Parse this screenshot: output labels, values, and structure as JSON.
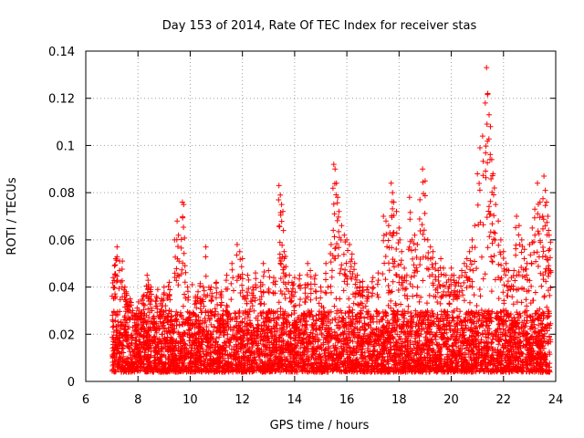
{
  "chart_data": {
    "type": "scatter",
    "title": "Day 153 of 2014, Rate Of TEC Index for receiver stas",
    "xlabel": "GPS time / hours",
    "ylabel": "ROTI / TECUs",
    "xlim": [
      6,
      24
    ],
    "ylim": [
      0,
      0.14
    ],
    "x_ticks": [
      6,
      8,
      10,
      12,
      14,
      16,
      18,
      20,
      22,
      24
    ],
    "x_tick_labels": [
      "6",
      "8",
      "10",
      "12",
      "14",
      "16",
      "18",
      "20",
      "22",
      "24"
    ],
    "y_ticks": [
      0,
      0.02,
      0.04,
      0.06,
      0.08,
      0.1,
      0.12,
      0.14
    ],
    "y_tick_labels": [
      "0",
      "0.02",
      "0.04",
      "0.06",
      "0.08",
      "0.1",
      "0.12",
      "0.14"
    ],
    "grid": true,
    "legend": "none",
    "marker": "plus",
    "colors": {
      "points": "#ff0000",
      "grid": "#a0a0a0",
      "axes": "#000000"
    },
    "series": [
      {
        "name": "ROTI",
        "note": "dense band of ~0.005-0.03 TECU points from 7.0 to 23.8 h is generated as a band; listed points are the upper envelope",
        "band": {
          "x_start": 7.0,
          "x_end": 23.8,
          "y_min": 0.004,
          "y_typical_max": 0.03
        },
        "x": [
          7.05,
          7.1,
          7.15,
          7.2,
          7.3,
          7.4,
          7.5,
          7.55,
          7.6,
          7.7,
          7.8,
          7.9,
          8.2,
          8.35,
          8.4,
          8.5,
          8.7,
          8.9,
          9.0,
          9.2,
          9.4,
          9.5,
          9.55,
          9.7,
          9.75,
          9.8,
          9.9,
          10.2,
          10.3,
          10.4,
          10.5,
          10.6,
          10.8,
          11.0,
          11.2,
          11.4,
          11.6,
          11.8,
          11.9,
          12.0,
          12.2,
          12.4,
          12.5,
          12.7,
          12.8,
          13.0,
          13.2,
          13.4,
          13.45,
          13.5,
          13.55,
          13.6,
          13.65,
          13.8,
          13.9,
          14.0,
          14.2,
          14.4,
          14.5,
          14.6,
          14.8,
          15.0,
          15.2,
          15.4,
          15.5,
          15.55,
          15.6,
          15.65,
          15.7,
          15.8,
          15.9,
          16.0,
          16.1,
          16.2,
          16.3,
          16.4,
          16.5,
          16.6,
          16.8,
          17.0,
          17.2,
          17.4,
          17.5,
          17.6,
          17.65,
          17.7,
          17.75,
          17.8,
          17.9,
          18.0,
          18.1,
          18.2,
          18.3,
          18.4,
          18.5,
          18.6,
          18.7,
          18.8,
          18.9,
          19.0,
          19.1,
          19.2,
          19.3,
          19.4,
          19.5,
          19.6,
          19.7,
          19.8,
          19.9,
          20.0,
          20.1,
          20.2,
          20.3,
          20.4,
          20.5,
          20.6,
          20.7,
          20.8,
          20.9,
          21.0,
          21.1,
          21.2,
          21.3,
          21.35,
          21.4,
          21.45,
          21.5,
          21.55,
          21.6,
          21.65,
          21.7,
          21.8,
          21.9,
          22.0,
          22.1,
          22.2,
          22.3,
          22.4,
          22.5,
          22.6,
          22.7,
          22.8,
          22.9,
          23.0,
          23.1,
          23.2,
          23.3,
          23.4,
          23.5,
          23.55,
          23.6,
          23.65,
          23.7,
          23.75,
          23.8
        ],
        "y": [
          0.044,
          0.049,
          0.052,
          0.057,
          0.051,
          0.051,
          0.04,
          0.038,
          0.033,
          0.035,
          0.03,
          0.028,
          0.036,
          0.045,
          0.041,
          0.04,
          0.036,
          0.035,
          0.04,
          0.042,
          0.06,
          0.068,
          0.062,
          0.076,
          0.075,
          0.049,
          0.04,
          0.036,
          0.038,
          0.035,
          0.04,
          0.057,
          0.04,
          0.042,
          0.038,
          0.045,
          0.05,
          0.058,
          0.055,
          0.052,
          0.045,
          0.04,
          0.046,
          0.042,
          0.05,
          0.047,
          0.044,
          0.083,
          0.079,
          0.075,
          0.072,
          0.055,
          0.053,
          0.045,
          0.042,
          0.044,
          0.045,
          0.041,
          0.05,
          0.047,
          0.045,
          0.04,
          0.05,
          0.058,
          0.092,
          0.09,
          0.084,
          0.078,
          0.072,
          0.066,
          0.062,
          0.06,
          0.058,
          0.054,
          0.05,
          0.045,
          0.042,
          0.04,
          0.04,
          0.044,
          0.046,
          0.07,
          0.068,
          0.066,
          0.063,
          0.084,
          0.08,
          0.076,
          0.072,
          0.065,
          0.055,
          0.048,
          0.045,
          0.078,
          0.06,
          0.062,
          0.058,
          0.077,
          0.09,
          0.085,
          0.06,
          0.057,
          0.055,
          0.05,
          0.047,
          0.052,
          0.048,
          0.045,
          0.043,
          0.048,
          0.045,
          0.042,
          0.044,
          0.047,
          0.05,
          0.052,
          0.055,
          0.06,
          0.066,
          0.088,
          0.099,
          0.104,
          0.118,
          0.133,
          0.122,
          0.113,
          0.108,
          0.094,
          0.088,
          0.082,
          0.075,
          0.068,
          0.06,
          0.055,
          0.05,
          0.047,
          0.044,
          0.047,
          0.07,
          0.066,
          0.06,
          0.056,
          0.05,
          0.058,
          0.065,
          0.073,
          0.084,
          0.076,
          0.07,
          0.087,
          0.081,
          0.076,
          0.07,
          0.062,
          0.059
        ]
      }
    ]
  }
}
